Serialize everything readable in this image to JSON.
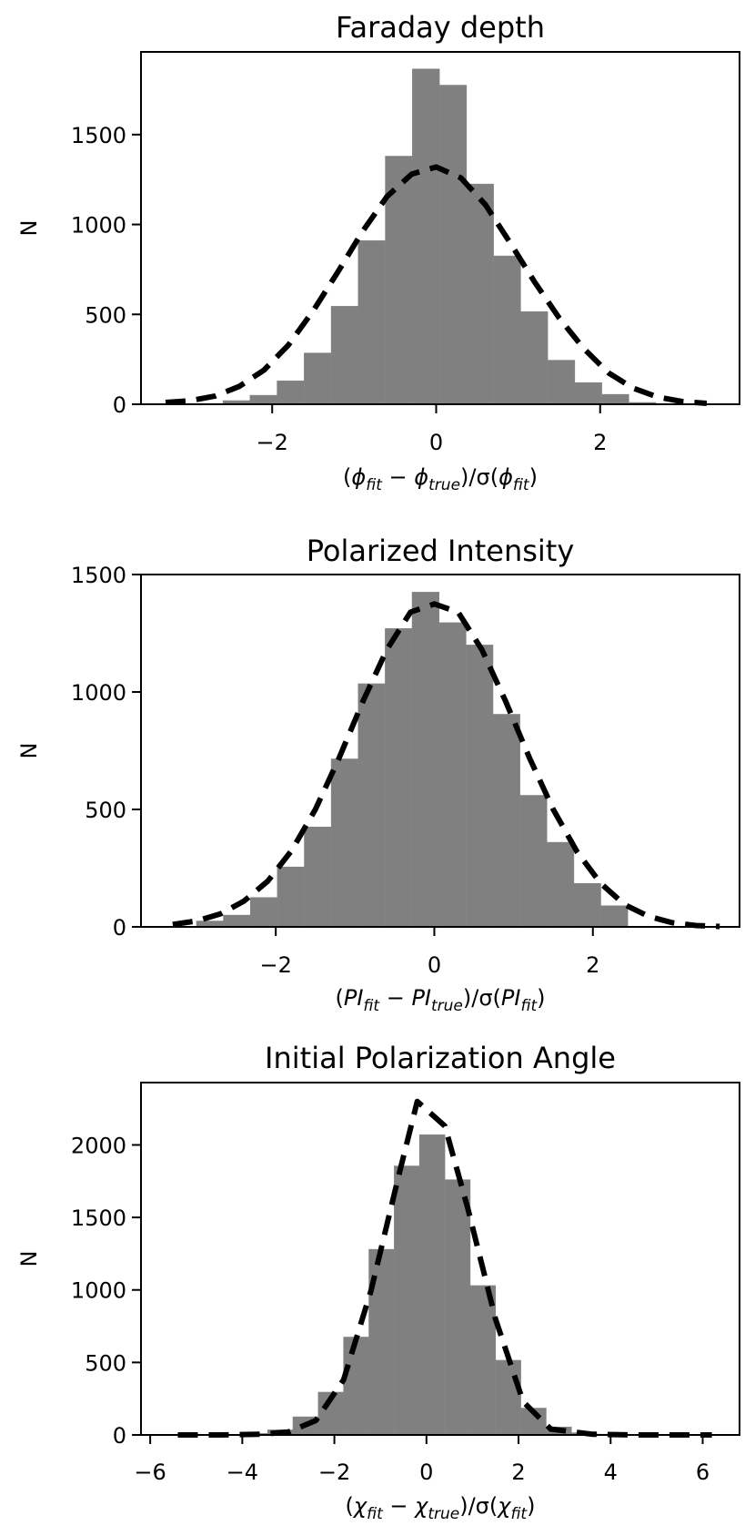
{
  "chart_data": [
    {
      "type": "bar",
      "title": "Faraday depth",
      "ylabel": "N",
      "xlabel": {
        "pre": "(",
        "a": "ϕ",
        "a_sub": "fit",
        "op": " − ",
        "b": "ϕ",
        "b_sub": "true",
        "mid": ")/σ(",
        "c": "ϕ",
        "c_sub": "fit",
        "post": ")"
      },
      "xlim": [
        -3.6,
        3.7
      ],
      "ylim": [
        0,
        1960
      ],
      "xticks": [
        -2,
        0,
        2
      ],
      "yticks": [
        0,
        500,
        1000,
        1500
      ],
      "bar_color": "#808080",
      "bins": {
        "edges": [
          -2.6,
          -2.27,
          -1.94,
          -1.61,
          -1.28,
          -0.95,
          -0.62,
          -0.29,
          0.04,
          0.37,
          0.7,
          1.03,
          1.36,
          1.69,
          2.02,
          2.35,
          2.68
        ],
        "values": [
          20,
          50,
          130,
          285,
          545,
          910,
          1380,
          1865,
          1775,
          1225,
          825,
          515,
          245,
          120,
          55,
          10
        ]
      },
      "fit_curve": {
        "style": "dashed",
        "x": [
          -3.3,
          -3.0,
          -2.7,
          -2.4,
          -2.1,
          -1.8,
          -1.5,
          -1.2,
          -0.9,
          -0.6,
          -0.3,
          0.0,
          0.3,
          0.6,
          0.9,
          1.2,
          1.5,
          1.8,
          2.1,
          2.4,
          2.7,
          3.0,
          3.3
        ],
        "y": [
          10,
          20,
          45,
          100,
          190,
          330,
          520,
          735,
          960,
          1155,
          1280,
          1320,
          1260,
          1110,
          900,
          680,
          480,
          310,
          175,
          90,
          40,
          15,
          5
        ]
      }
    },
    {
      "type": "bar",
      "title": "Polarized Intensity",
      "ylabel": "N",
      "xlabel": {
        "pre": "(",
        "a": "PI",
        "a_sub": "fit",
        "op": " − ",
        "b": "PI",
        "b_sub": "true",
        "mid": ")/σ(",
        "c": "PI",
        "c_sub": "fit",
        "post": ")"
      },
      "xlim": [
        -3.7,
        3.85
      ],
      "ylim": [
        0,
        1500
      ],
      "xticks": [
        -2,
        0,
        2
      ],
      "yticks": [
        0,
        500,
        1000,
        1500
      ],
      "bar_color": "#808080",
      "bins": {
        "edges": [
          -3.0,
          -2.66,
          -2.32,
          -1.98,
          -1.64,
          -1.3,
          -0.96,
          -0.62,
          -0.28,
          0.06,
          0.4,
          0.74,
          1.08,
          1.42,
          1.76,
          2.1,
          2.44
        ],
        "values": [
          25,
          50,
          125,
          255,
          425,
          715,
          1035,
          1270,
          1425,
          1295,
          1200,
          905,
          560,
          360,
          185,
          90
        ]
      },
      "fit_curve": {
        "style": "dashed",
        "x": [
          -3.3,
          -3.0,
          -2.7,
          -2.4,
          -2.1,
          -1.8,
          -1.5,
          -1.2,
          -0.9,
          -0.6,
          -0.3,
          0.0,
          0.3,
          0.6,
          0.9,
          1.2,
          1.5,
          1.8,
          2.1,
          2.4,
          2.7,
          3.0,
          3.3,
          3.6
        ],
        "y": [
          10,
          25,
          55,
          110,
          195,
          325,
          500,
          720,
          960,
          1180,
          1340,
          1375,
          1340,
          1180,
          960,
          720,
          500,
          320,
          185,
          95,
          45,
          18,
          6,
          2
        ]
      }
    },
    {
      "type": "bar",
      "title": "Initial Polarization Angle",
      "ylabel": "N",
      "xlabel": {
        "pre": "(",
        "a": "χ",
        "a_sub": "fit",
        "op": " − ",
        "b": "χ",
        "b_sub": "true",
        "mid": ")/σ(",
        "c": "χ",
        "c_sub": "fit",
        "post": ")"
      },
      "xlim": [
        -6.2,
        6.8
      ],
      "ylim": [
        0,
        2430
      ],
      "xticks": [
        -6,
        -4,
        -2,
        0,
        2,
        4,
        6
      ],
      "yticks": [
        0,
        500,
        1000,
        1500,
        2000
      ],
      "bar_color": "#808080",
      "bins": {
        "edges": [
          -4.0,
          -3.45,
          -2.9,
          -2.35,
          -1.8,
          -1.25,
          -0.7,
          -0.15,
          0.4,
          0.95,
          1.5,
          2.05,
          2.6,
          3.15,
          3.7,
          4.25
        ],
        "values": [
          10,
          35,
          125,
          295,
          675,
          1280,
          1855,
          2070,
          1760,
          1030,
          515,
          185,
          55,
          15,
          5
        ]
      },
      "fit_curve": {
        "style": "dashed",
        "x": [
          -5.4,
          -4.5,
          -3.6,
          -3.0,
          -2.4,
          -1.8,
          -1.2,
          -0.6,
          -0.2,
          0.4,
          0.9,
          1.5,
          2.1,
          2.7,
          3.6,
          4.5,
          5.4,
          6.2
        ],
        "y": [
          0,
          0,
          5,
          20,
          100,
          380,
          1000,
          1790,
          2300,
          2130,
          1560,
          800,
          230,
          40,
          5,
          0,
          0,
          0
        ]
      }
    }
  ]
}
